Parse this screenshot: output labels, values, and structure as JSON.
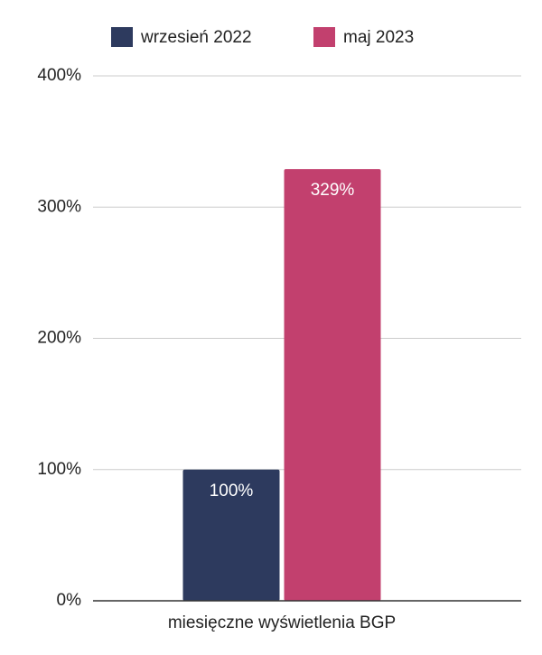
{
  "chart_data": {
    "type": "bar",
    "categories": [
      "miesięczne wyświetlenia BGP"
    ],
    "series": [
      {
        "name": "wrzesień 2022",
        "color": "#2d3a5e",
        "values": [
          100
        ],
        "value_labels": [
          "100%"
        ]
      },
      {
        "name": "maj 2023",
        "color": "#c2406e",
        "values": [
          329
        ],
        "value_labels": [
          "329%"
        ]
      }
    ],
    "ylim": [
      0,
      400
    ],
    "yticks": [
      {
        "value": 0,
        "label": "0%"
      },
      {
        "value": 100,
        "label": "100%"
      },
      {
        "value": 200,
        "label": "200%"
      },
      {
        "value": 300,
        "label": "300%"
      },
      {
        "value": 400,
        "label": "400%"
      }
    ],
    "grid": true,
    "legend": "top"
  }
}
